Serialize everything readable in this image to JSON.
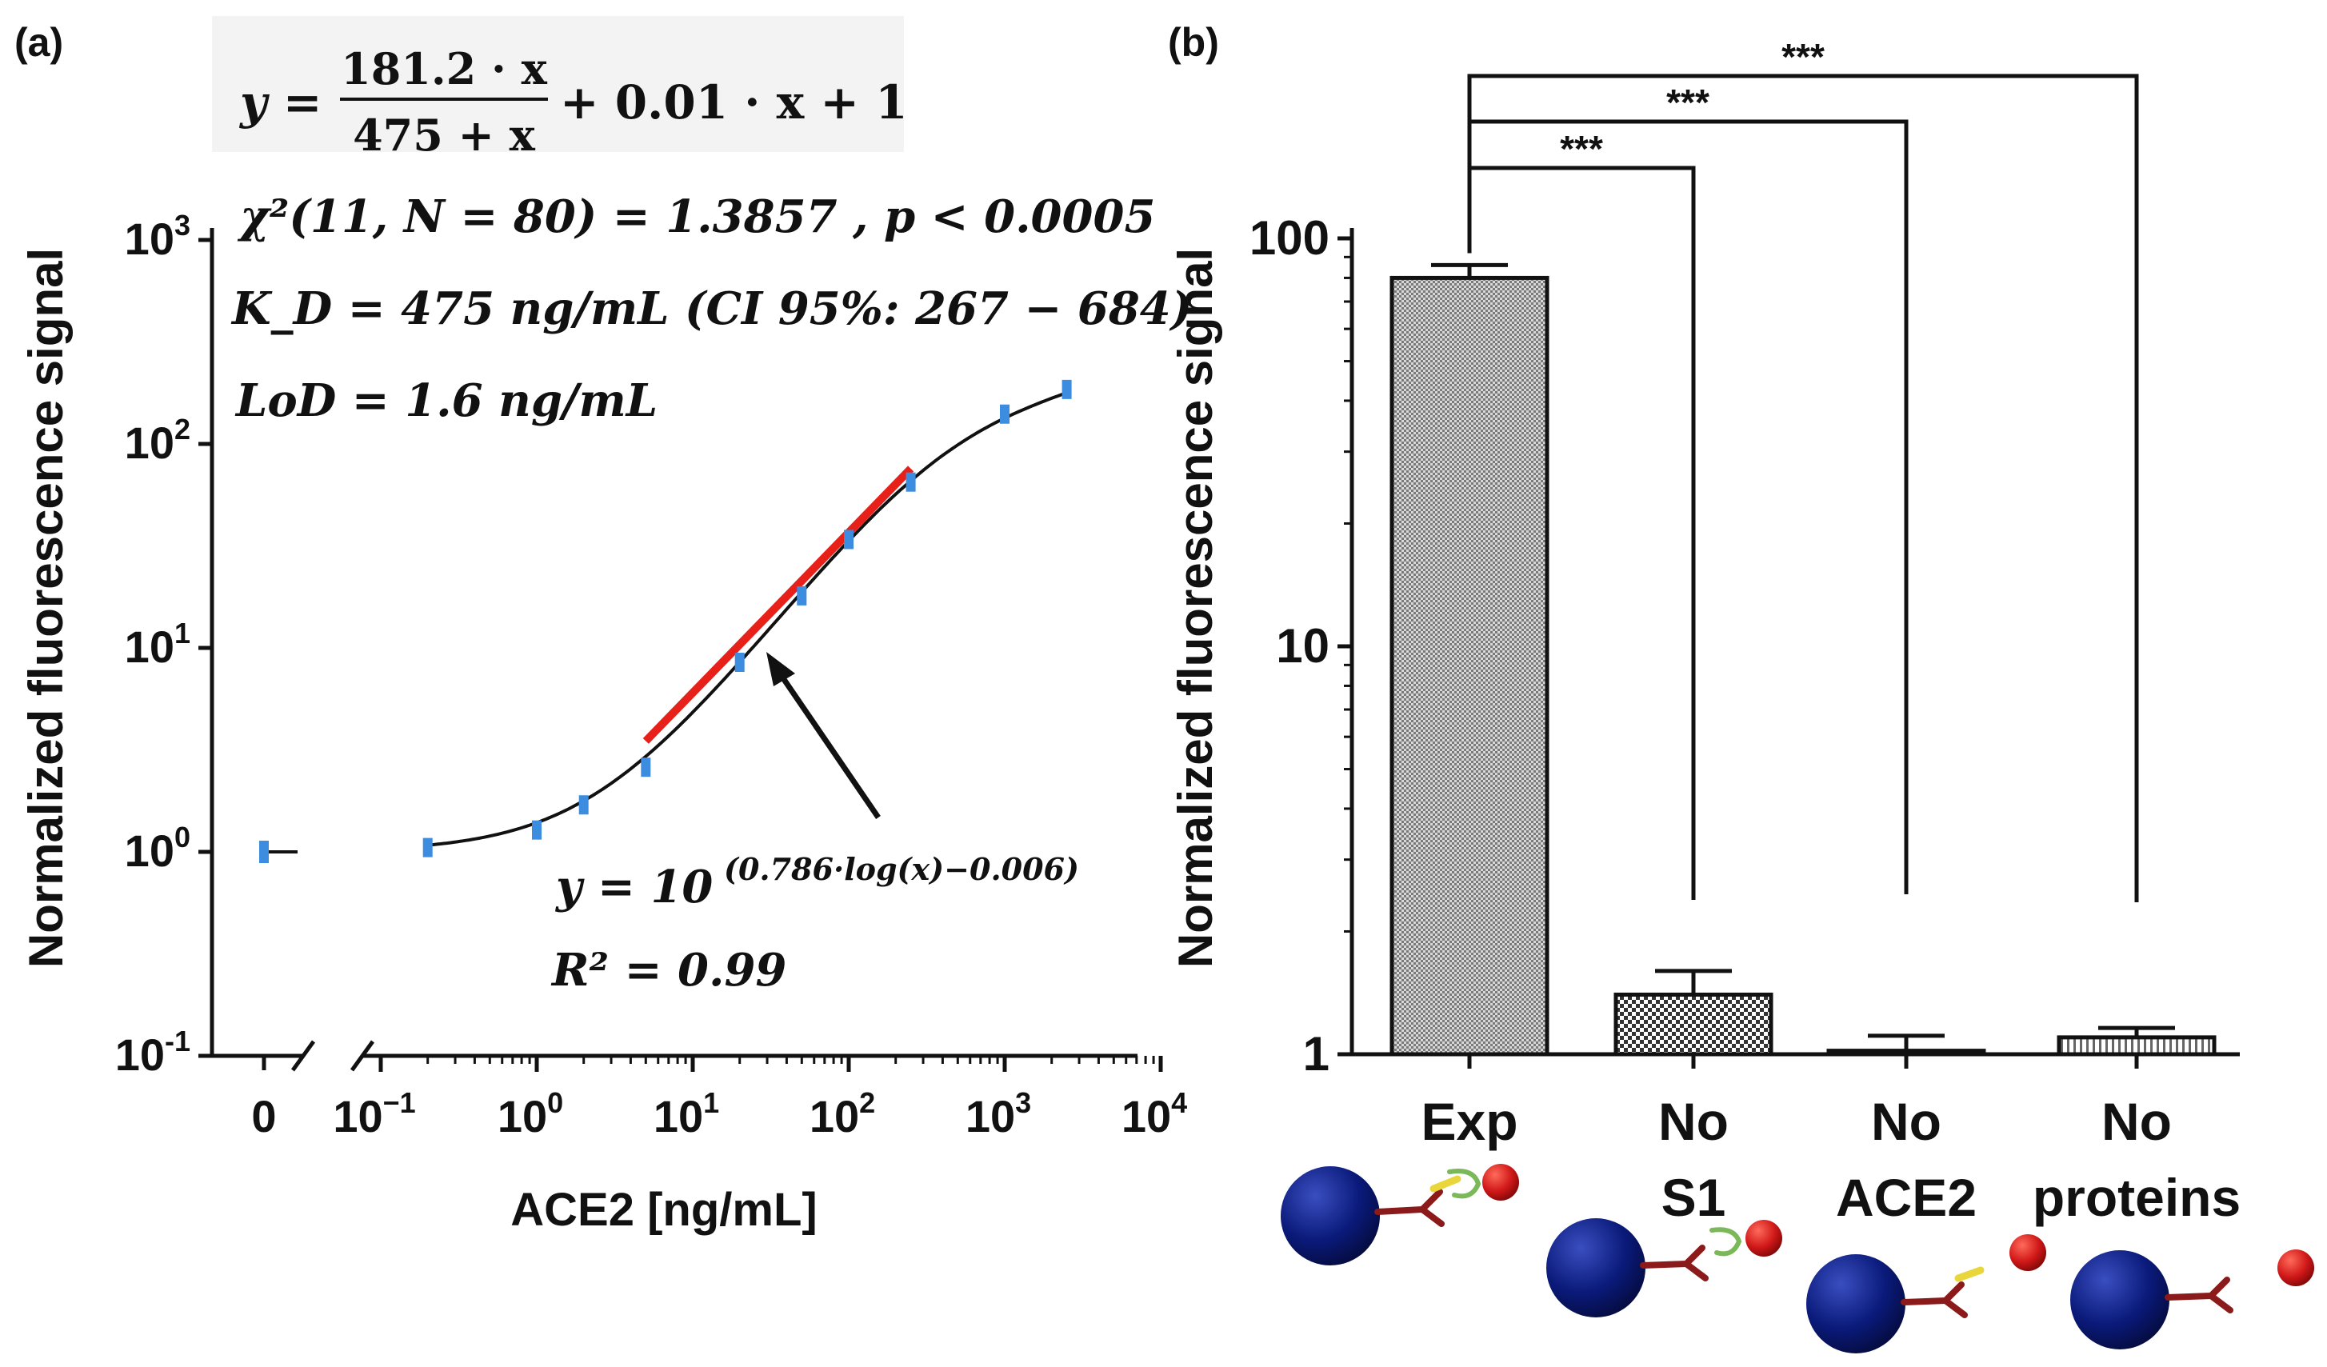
{
  "panels": [
    {
      "label": "(a)",
      "chart_data": {
        "type": "scatter",
        "xlabel": "ACE2 [ng/mL]",
        "ylabel": "Normalized fluorescence signal",
        "x_scale": "log",
        "y_scale": "log",
        "xlim": [
          0.1,
          10000
        ],
        "ylim": [
          0.1,
          1000
        ],
        "x_axis_break": true,
        "x_zero_tick_label": "0",
        "x_tick_bases": [
          "10",
          "10",
          "10",
          "10",
          "10",
          "10"
        ],
        "x_tick_exps": [
          "−1",
          "0",
          "1",
          "2",
          "3",
          "4"
        ],
        "x_tick_values": [
          0.1,
          1,
          10,
          100,
          1000,
          10000
        ],
        "y_tick_bases": [
          "10",
          "10",
          "10",
          "10",
          "10"
        ],
        "y_tick_exps": [
          "3",
          "2",
          "1",
          "0",
          "-1"
        ],
        "y_tick_values": [
          1000,
          100,
          10,
          1,
          0.1
        ],
        "zero_point": {
          "x": 0,
          "y": 1.0
        },
        "points": [
          {
            "x": 0.2,
            "y": 1.05
          },
          {
            "x": 1,
            "y": 1.28
          },
          {
            "x": 2,
            "y": 1.7
          },
          {
            "x": 5,
            "y": 2.6
          },
          {
            "x": 20,
            "y": 8.5
          },
          {
            "x": 50,
            "y": 18
          },
          {
            "x": 100,
            "y": 34
          },
          {
            "x": 250,
            "y": 65
          },
          {
            "x": 1000,
            "y": 140
          },
          {
            "x": 2500,
            "y": 185
          }
        ],
        "fit_curve": {
          "a": 181.2,
          "kd": 475,
          "b": 0.01,
          "c": 1,
          "xmin": 0.2,
          "xmax": 2500
        },
        "linear_fit": {
          "slope": 0.786,
          "intercept": -0.006,
          "xmin": 5,
          "xmax": 250,
          "color": "#e8201a"
        },
        "point_color": "#3c8de0",
        "equations": {
          "model": {
            "y_eq": "y =",
            "numerator": "181.2 · x",
            "denominator": "475 + x",
            "rest": "+ 0.01 · x + 1"
          },
          "chi": "χ²(11, N = 80) = 1.3857 , p < 0.0005",
          "kd": "K_D = 475 ng/mL (CI 95%: 267 − 684)",
          "lod": "LoD = 1.6 ng/mL",
          "linear": {
            "base": "y = 10",
            "exponent": "(0.786·log(x)−0.006)"
          },
          "r2": "R² = 0.99"
        }
      }
    },
    {
      "label": "(b)",
      "chart_data": {
        "type": "bar",
        "ylabel": "Normalized fluorescence signal",
        "y_scale": "log",
        "ylim": [
          1,
          100
        ],
        "y_tick_labels": [
          "100",
          "10",
          "1"
        ],
        "y_tick_values": [
          100,
          10,
          1
        ],
        "categories": [
          "Exp",
          "No S1",
          "No ACE2",
          "No proteins"
        ],
        "category_lines": [
          [
            "Exp"
          ],
          [
            "No",
            "S1"
          ],
          [
            "No",
            "ACE2"
          ],
          [
            "No",
            "proteins"
          ]
        ],
        "values": [
          80,
          1.4,
          1.02,
          1.1
        ],
        "errors": [
          6,
          0.2,
          0.09,
          0.06
        ],
        "significance": [
          {
            "to": 1,
            "label": "***"
          },
          {
            "to": 2,
            "label": "***"
          },
          {
            "to": 3,
            "label": "***"
          }
        ],
        "colors": {
          "sphere": "#0a1a7a",
          "antibody": "#8b1a1a",
          "ace2": "#e8d63a",
          "s1": "#7ab85a",
          "fluorophore": "#d01818"
        }
      }
    }
  ]
}
